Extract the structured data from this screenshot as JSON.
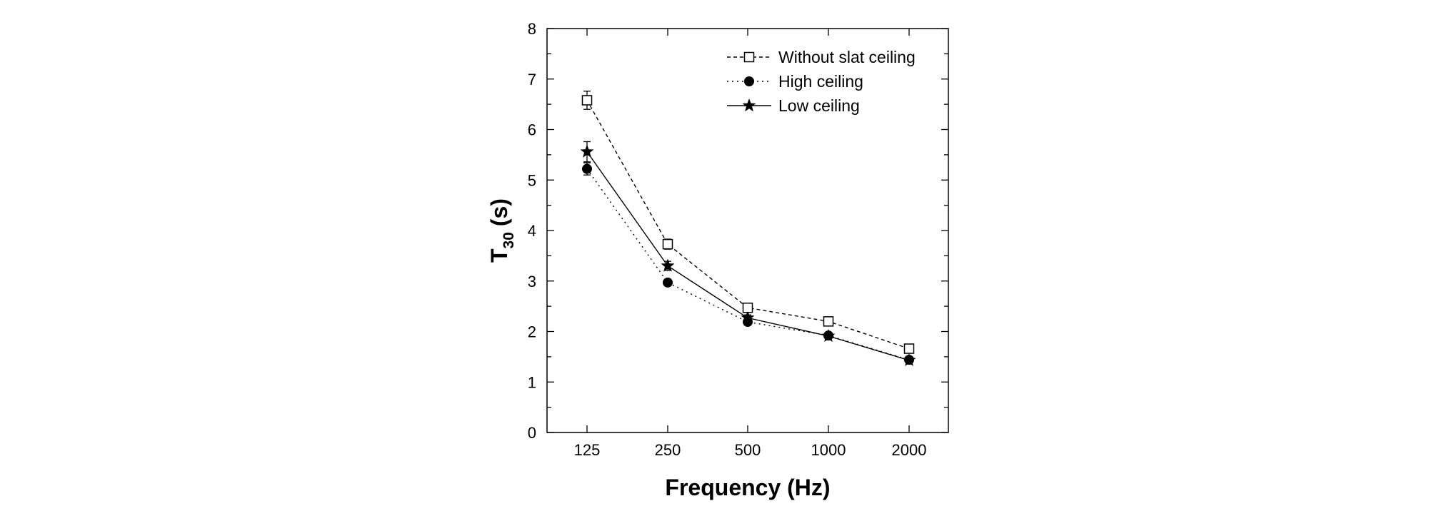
{
  "chart_data": {
    "type": "line",
    "title": "",
    "xlabel": "Frequency (Hz)",
    "ylabel_main": "T",
    "ylabel_sub": "30",
    "ylabel_unit": "(s)",
    "categories": [
      "125",
      "250",
      "500",
      "1000",
      "2000"
    ],
    "ylim": [
      0,
      8
    ],
    "yticks": [
      "0",
      "1",
      "2",
      "3",
      "4",
      "5",
      "6",
      "7",
      "8"
    ],
    "legend_position": "top-right",
    "series": [
      {
        "name": "Without slat ceiling",
        "marker": "open-square",
        "line": "dashed",
        "values": [
          6.58,
          3.73,
          2.47,
          2.2,
          1.66
        ],
        "errors": [
          0.18,
          0.1,
          0.06,
          0.06,
          0.05
        ]
      },
      {
        "name": "High ceiling",
        "marker": "filled-circle",
        "line": "dotted",
        "values": [
          5.22,
          2.97,
          2.19,
          1.92,
          1.44
        ],
        "errors": [
          0.12,
          0.06,
          0.05,
          0.04,
          0.04
        ]
      },
      {
        "name": "Low ceiling",
        "marker": "filled-star",
        "line": "solid",
        "values": [
          5.56,
          3.3,
          2.27,
          1.91,
          1.43
        ],
        "errors": [
          0.2,
          0.09,
          0.06,
          0.04,
          0.04
        ]
      }
    ]
  }
}
